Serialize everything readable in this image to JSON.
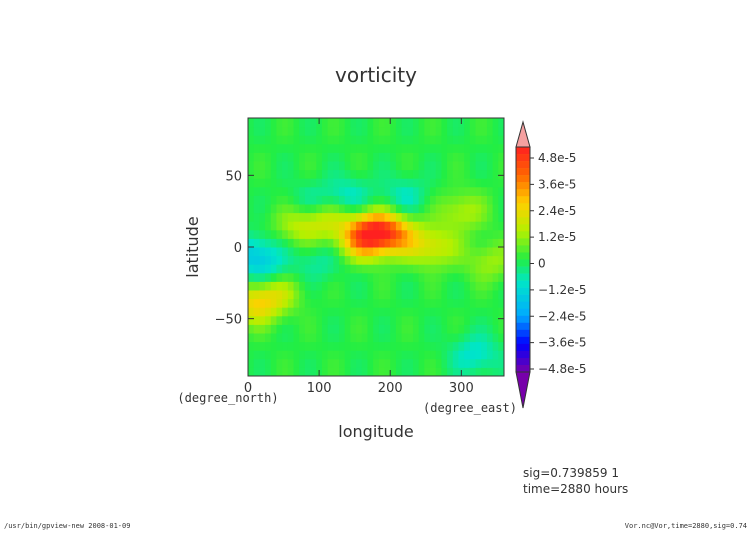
{
  "chart_data": {
    "type": "heatmap",
    "title": "vorticity",
    "xlabel": "longitude",
    "ylabel": "latitude",
    "x_unit": "(degree_east)",
    "y_unit": "(degree_north)",
    "xlim": [
      0,
      360
    ],
    "ylim": [
      -90,
      90
    ],
    "x_ticks": [
      "0",
      "100",
      "200",
      "300"
    ],
    "y_ticks": [
      "50",
      "0",
      "−50"
    ],
    "colorbar": {
      "vmin": -4.8e-05,
      "vmax": 4.8e-05,
      "tick_labels": [
        "4.8e-5",
        "3.6e-5",
        "2.4e-5",
        "1.2e-5",
        "0",
        "−1.2e-5",
        "−2.4e-5",
        "−3.6e-5",
        "−4.8e-5"
      ],
      "extend": "both"
    },
    "colors": {
      "neg_max": "#7700aa",
      "neg_strong": "#0000ff",
      "neg_mid": "#00aaff",
      "neg_weak": "#00e6c8",
      "near_zero": "#22ee44",
      "pos_weak": "#b4f000",
      "pos_mid": "#ffd000",
      "pos_strong": "#ff6600",
      "pos_max": "#ff2020",
      "over": "#f5a0a0"
    },
    "field_regions": [
      {
        "lon": 160,
        "lat": 5,
        "value": 2.4e-05
      },
      {
        "lon": 180,
        "lat": 12,
        "value": 3e-05
      },
      {
        "lon": 210,
        "lat": 8,
        "value": 2e-05
      },
      {
        "lon": 10,
        "lat": -40,
        "value": 2e-05
      },
      {
        "lon": 40,
        "lat": -30,
        "value": 1.5e-05
      },
      {
        "lon": 70,
        "lat": 15,
        "value": 1.2e-05
      },
      {
        "lon": 110,
        "lat": 20,
        "value": 1.4e-05
      },
      {
        "lon": 300,
        "lat": 25,
        "value": 1.2e-05
      },
      {
        "lon": 260,
        "lat": 0,
        "value": 1.6e-05
      },
      {
        "lon": 10,
        "lat": -5,
        "value": -1.5e-05
      },
      {
        "lon": 30,
        "lat": -20,
        "value": -1e-05
      },
      {
        "lon": 90,
        "lat": 30,
        "value": -8e-06
      },
      {
        "lon": 140,
        "lat": 35,
        "value": -1e-05
      },
      {
        "lon": 220,
        "lat": 35,
        "value": -9e-06
      },
      {
        "lon": 320,
        "lat": -75,
        "value": -1.1e-05
      },
      {
        "lon": 100,
        "lat": -10,
        "value": -7e-06
      },
      {
        "lon": 340,
        "lat": -10,
        "value": 1e-05
      }
    ]
  },
  "annotations": {
    "sig": "sig=0.739859 1",
    "time": "time=2880 hours"
  },
  "footer": {
    "left": "/usr/bin/gpview-new  2008-01-09",
    "right": "Vor.nc@Vor,time=2880,sig=0.74"
  }
}
